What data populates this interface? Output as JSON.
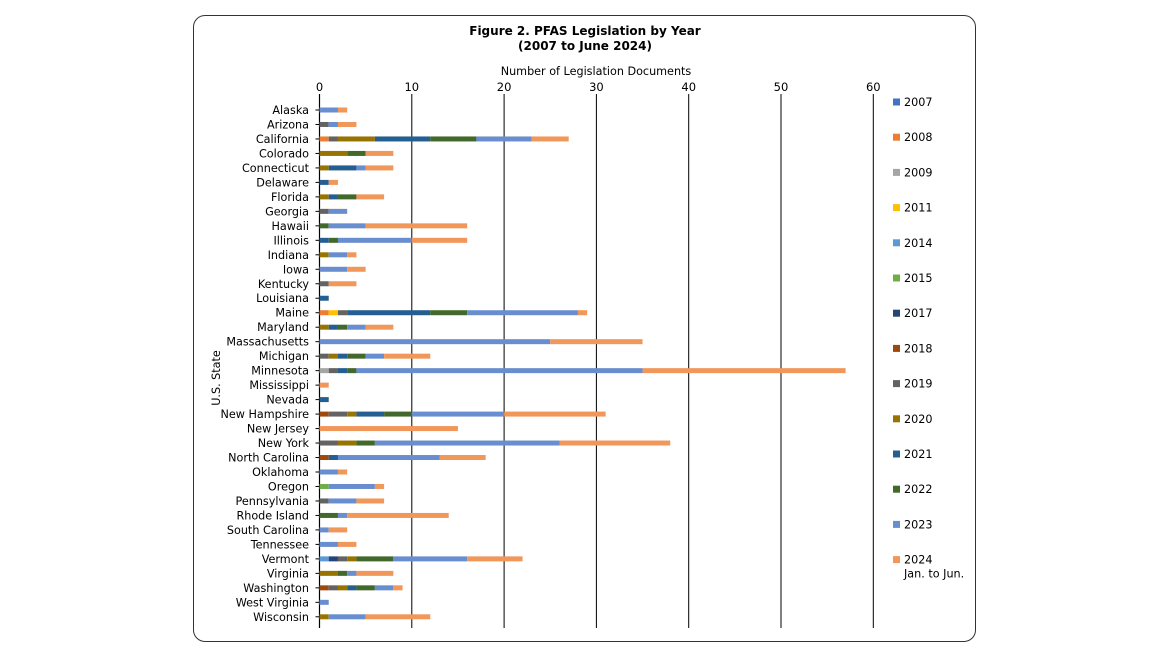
{
  "chart_data": {
    "type": "bar",
    "orientation": "horizontal",
    "stacked": true,
    "title": "Figure 2. PFAS Legislation by Year",
    "subtitle": "(2007 to June 2024)",
    "xlabel": "Number of Legislation Documents",
    "ylabel": "U.S. State",
    "xlim": [
      0,
      60
    ],
    "x_ticks": [
      0,
      10,
      20,
      30,
      40,
      50,
      60
    ],
    "x_axis_position": "top",
    "grid": "vertical",
    "legend_position": "right",
    "categories": [
      "Alaska",
      "Arizona",
      "California",
      "Colorado",
      "Connecticut",
      "Delaware",
      "Florida",
      "Georgia",
      "Hawaii",
      "Illinois",
      "Indiana",
      "Iowa",
      "Kentucky",
      "Louisiana",
      "Maine",
      "Maryland",
      "Massachusetts",
      "Michigan",
      "Minnesota",
      "Mississippi",
      "Nevada",
      "New Hampshire",
      "New Jersey",
      "New York",
      "North Carolina",
      "Oklahoma",
      "Oregon",
      "Pennsylvania",
      "Rhode Island",
      "South Carolina",
      "Tennessee",
      "Vermont",
      "Virginia",
      "Washington",
      "West Virginia",
      "Wisconsin"
    ],
    "series": [
      {
        "name": "2007",
        "color": "#4472c4",
        "values": [
          0,
          0,
          0,
          0,
          0,
          0,
          0,
          0,
          0,
          0,
          0,
          0,
          0,
          0,
          0,
          0,
          0,
          0,
          0,
          0,
          0,
          0,
          0,
          0,
          0,
          0,
          0,
          0,
          0,
          0,
          0,
          0,
          0,
          0,
          0,
          0
        ]
      },
      {
        "name": "2008",
        "color": "#ed7d31",
        "values": [
          0,
          0,
          1,
          0,
          0,
          0,
          0,
          0,
          0,
          0,
          0,
          0,
          0,
          0,
          1,
          0,
          0,
          0,
          0,
          0,
          0,
          0,
          0,
          0,
          0,
          0,
          0,
          0,
          0,
          0,
          0,
          0,
          0,
          0,
          0,
          0
        ]
      },
      {
        "name": "2009",
        "color": "#a5a5a5",
        "values": [
          0,
          0,
          0,
          0,
          0,
          0,
          0,
          0,
          0,
          0,
          0,
          0,
          0,
          0,
          0,
          0,
          0,
          0,
          1,
          0,
          0,
          0,
          0,
          0,
          0,
          0,
          0,
          0,
          0,
          0,
          0,
          0,
          0,
          0,
          0,
          0
        ]
      },
      {
        "name": "2011",
        "color": "#ffc000",
        "values": [
          0,
          0,
          0,
          0,
          0,
          0,
          0,
          0,
          0,
          0,
          0,
          0,
          0,
          0,
          1,
          0,
          0,
          0,
          0,
          0,
          0,
          0,
          0,
          0,
          0,
          0,
          0,
          0,
          0,
          0,
          0,
          0,
          0,
          0,
          0,
          0
        ]
      },
      {
        "name": "2014",
        "color": "#5b9bd5",
        "values": [
          0,
          0,
          0,
          0,
          0,
          0,
          0,
          0,
          0,
          0,
          0,
          0,
          0,
          0,
          0,
          0,
          0,
          0,
          0,
          0,
          0,
          0,
          0,
          0,
          0,
          0,
          0,
          0,
          0,
          0,
          0,
          1,
          0,
          0,
          0,
          0
        ]
      },
      {
        "name": "2015",
        "color": "#70ad47",
        "values": [
          0,
          0,
          0,
          0,
          0,
          0,
          0,
          0,
          0,
          0,
          0,
          0,
          0,
          0,
          0,
          0,
          0,
          0,
          0,
          0,
          0,
          0,
          0,
          0,
          0,
          0,
          1,
          0,
          0,
          0,
          0,
          0,
          0,
          0,
          0,
          0
        ]
      },
      {
        "name": "2017",
        "color": "#264478",
        "values": [
          0,
          0,
          0,
          0,
          0,
          0,
          0,
          0,
          0,
          0,
          0,
          0,
          0,
          0,
          0,
          0,
          0,
          0,
          0,
          0,
          0,
          0,
          0,
          0,
          0,
          0,
          0,
          0,
          0,
          0,
          0,
          1,
          0,
          0,
          0,
          0
        ]
      },
      {
        "name": "2018",
        "color": "#9e480e",
        "values": [
          0,
          0,
          0,
          0,
          0,
          0,
          0,
          0,
          0,
          0,
          0,
          0,
          0,
          0,
          0,
          0,
          0,
          0,
          0,
          0,
          0,
          1,
          0,
          0,
          1,
          0,
          0,
          0,
          0,
          0,
          0,
          0,
          0,
          1,
          0,
          0
        ]
      },
      {
        "name": "2019",
        "color": "#636363",
        "values": [
          0,
          1,
          1,
          0,
          0,
          0,
          0,
          1,
          0,
          0,
          0,
          0,
          1,
          0,
          1,
          0,
          0,
          1,
          1,
          0,
          0,
          2,
          0,
          2,
          0,
          0,
          0,
          1,
          0,
          0,
          0,
          1,
          0,
          1,
          0,
          0
        ]
      },
      {
        "name": "2020",
        "color": "#997300",
        "values": [
          0,
          0,
          4,
          3,
          1,
          0,
          1,
          0,
          0,
          0,
          1,
          0,
          0,
          0,
          0,
          1,
          0,
          1,
          0,
          0,
          0,
          1,
          0,
          2,
          0,
          0,
          0,
          0,
          0,
          0,
          0,
          1,
          2,
          1,
          0,
          1
        ]
      },
      {
        "name": "2021",
        "color": "#255e91",
        "values": [
          0,
          0,
          6,
          0,
          3,
          1,
          1,
          0,
          0,
          1,
          0,
          0,
          0,
          1,
          9,
          1,
          0,
          1,
          1,
          0,
          1,
          3,
          0,
          0,
          1,
          0,
          0,
          0,
          0,
          0,
          0,
          0,
          0,
          1,
          0,
          0
        ]
      },
      {
        "name": "2022",
        "color": "#43682b",
        "values": [
          0,
          0,
          5,
          2,
          0,
          0,
          2,
          0,
          1,
          1,
          0,
          0,
          0,
          0,
          4,
          1,
          0,
          2,
          1,
          0,
          0,
          3,
          0,
          2,
          0,
          0,
          0,
          0,
          2,
          0,
          0,
          4,
          1,
          2,
          0,
          0
        ]
      },
      {
        "name": "2023",
        "color": "#698ed0",
        "values": [
          2,
          1,
          6,
          0,
          1,
          0,
          0,
          2,
          4,
          8,
          2,
          3,
          0,
          0,
          12,
          2,
          25,
          2,
          31,
          0,
          0,
          10,
          0,
          20,
          11,
          2,
          5,
          3,
          1,
          1,
          2,
          8,
          1,
          2,
          1,
          4
        ]
      },
      {
        "name": "2024\nJan. to Jun.",
        "color": "#f1975a",
        "values": [
          1,
          2,
          4,
          3,
          3,
          1,
          3,
          0,
          11,
          6,
          1,
          2,
          3,
          0,
          1,
          3,
          10,
          5,
          22,
          1,
          0,
          11,
          15,
          12,
          5,
          1,
          1,
          3,
          11,
          2,
          2,
          6,
          4,
          1,
          0,
          7
        ]
      }
    ]
  }
}
